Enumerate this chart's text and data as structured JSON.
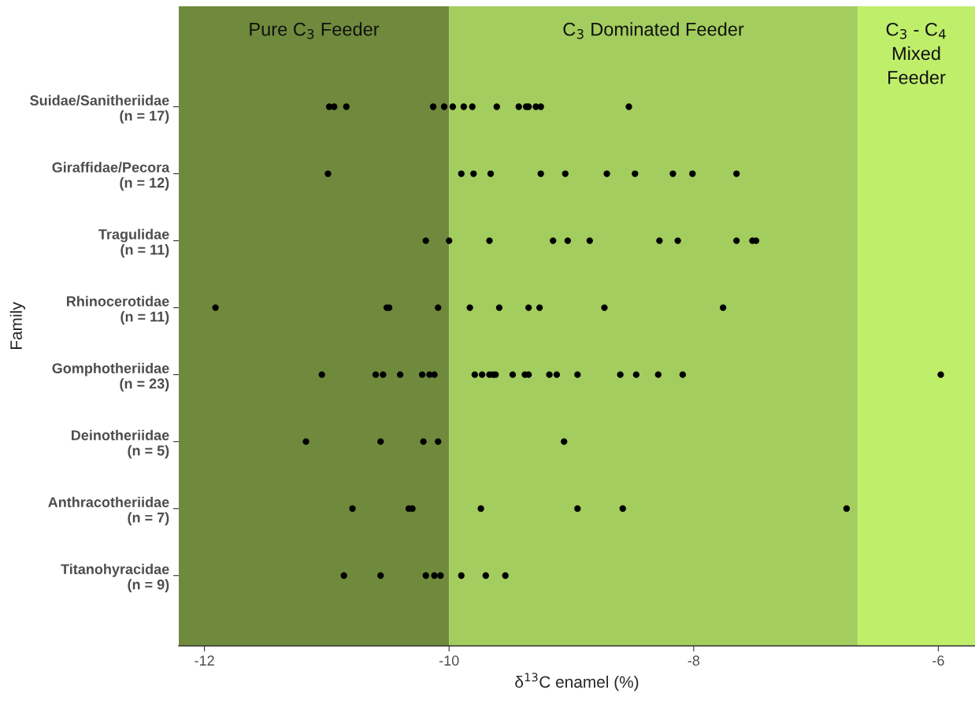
{
  "chart_data": {
    "type": "scatter",
    "orientation": "horizontal",
    "xlabel": "δ$^{13}$C enamel (%)",
    "ylabel": "Family",
    "categories": [
      "Suidae/Sanitheriidae\n(n = 17)",
      "Giraffidae/Pecora\n(n = 12)",
      "Tragulidae\n(n = 11)",
      "Rhinocerotidae\n(n = 11)",
      "Gomphotheriidae\n(n = 23)",
      "Deinotheriidae\n(n = 5)",
      "Anthracotheriidae\n(n = 7)",
      "Titanohyracidae\n(n = 9)"
    ],
    "series": [
      {
        "color": "#000000",
        "x": [
          "Suidae/Sanitheriidae\n(n = 17)",
          "Suidae/Sanitheriidae\n(n = 17)",
          "Suidae/Sanitheriidae\n(n = 17)",
          "Suidae/Sanitheriidae\n(n = 17)",
          "Suidae/Sanitheriidae\n(n = 17)",
          "Suidae/Sanitheriidae\n(n = 17)",
          "Suidae/Sanitheriidae\n(n = 17)",
          "Suidae/Sanitheriidae\n(n = 17)",
          "Suidae/Sanitheriidae\n(n = 17)",
          "Suidae/Sanitheriidae\n(n = 17)",
          "Suidae/Sanitheriidae\n(n = 17)",
          "Suidae/Sanitheriidae\n(n = 17)",
          "Suidae/Sanitheriidae\n(n = 17)",
          "Suidae/Sanitheriidae\n(n = 17)",
          "Suidae/Sanitheriidae\n(n = 17)"
        ],
        "values": [
          -10.98,
          -10.94,
          -10.84,
          -10.13,
          -10.04,
          -9.97,
          -9.88,
          -9.81,
          -9.61,
          -9.43,
          -9.37,
          -9.35,
          -9.29,
          -9.25,
          -8.53
        ]
      },
      {
        "color": "#000000",
        "x": [
          "Giraffidae/Pecora\n(n = 12)",
          "Giraffidae/Pecora\n(n = 12)",
          "Giraffidae/Pecora\n(n = 12)",
          "Giraffidae/Pecora\n(n = 12)",
          "Giraffidae/Pecora\n(n = 12)",
          "Giraffidae/Pecora\n(n = 12)",
          "Giraffidae/Pecora\n(n = 12)",
          "Giraffidae/Pecora\n(n = 12)",
          "Giraffidae/Pecora\n(n = 12)",
          "Giraffidae/Pecora\n(n = 12)",
          "Giraffidae/Pecora\n(n = 12)"
        ],
        "values": [
          -10.99,
          -9.9,
          -9.8,
          -9.66,
          -9.25,
          -9.05,
          -8.71,
          -8.48,
          -8.17,
          -8.01,
          -7.65
        ]
      },
      {
        "color": "#000000",
        "x": [
          "Tragulidae\n(n = 11)",
          "Tragulidae\n(n = 11)",
          "Tragulidae\n(n = 11)",
          "Tragulidae\n(n = 11)",
          "Tragulidae\n(n = 11)",
          "Tragulidae\n(n = 11)",
          "Tragulidae\n(n = 11)",
          "Tragulidae\n(n = 11)",
          "Tragulidae\n(n = 11)",
          "Tragulidae\n(n = 11)",
          "Tragulidae\n(n = 11)"
        ],
        "values": [
          -10.19,
          -10.0,
          -9.67,
          -9.15,
          -9.03,
          -8.85,
          -8.28,
          -8.13,
          -7.65,
          -7.52,
          -7.49
        ]
      },
      {
        "color": "#000000",
        "x": [
          "Rhinocerotidae\n(n = 11)",
          "Rhinocerotidae\n(n = 11)",
          "Rhinocerotidae\n(n = 11)",
          "Rhinocerotidae\n(n = 11)",
          "Rhinocerotidae\n(n = 11)",
          "Rhinocerotidae\n(n = 11)",
          "Rhinocerotidae\n(n = 11)",
          "Rhinocerotidae\n(n = 11)",
          "Rhinocerotidae\n(n = 11)",
          "Rhinocerotidae\n(n = 11)"
        ],
        "values": [
          -11.91,
          -10.51,
          -10.49,
          -10.09,
          -9.83,
          -9.59,
          -9.35,
          -9.26,
          -8.73,
          -7.76
        ]
      },
      {
        "color": "#000000",
        "x": [
          "Gomphotheriidae\n(n = 23)",
          "Gomphotheriidae\n(n = 23)",
          "Gomphotheriidae\n(n = 23)",
          "Gomphotheriidae\n(n = 23)",
          "Gomphotheriidae\n(n = 23)",
          "Gomphotheriidae\n(n = 23)",
          "Gomphotheriidae\n(n = 23)",
          "Gomphotheriidae\n(n = 23)",
          "Gomphotheriidae\n(n = 23)",
          "Gomphotheriidae\n(n = 23)",
          "Gomphotheriidae\n(n = 23)",
          "Gomphotheriidae\n(n = 23)",
          "Gomphotheriidae\n(n = 23)",
          "Gomphotheriidae\n(n = 23)",
          "Gomphotheriidae\n(n = 23)",
          "Gomphotheriidae\n(n = 23)",
          "Gomphotheriidae\n(n = 23)",
          "Gomphotheriidae\n(n = 23)",
          "Gomphotheriidae\n(n = 23)",
          "Gomphotheriidae\n(n = 23)",
          "Gomphotheriidae\n(n = 23)",
          "Gomphotheriidae\n(n = 23)",
          "Gomphotheriidae\n(n = 23)"
        ],
        "values": [
          -11.04,
          -10.6,
          -10.54,
          -10.4,
          -10.22,
          -10.16,
          -10.12,
          -9.79,
          -9.73,
          -9.67,
          -9.64,
          -9.62,
          -9.48,
          -9.38,
          -9.35,
          -9.18,
          -9.12,
          -8.95,
          -8.6,
          -8.47,
          -8.29,
          -8.09,
          -5.98
        ]
      },
      {
        "color": "#000000",
        "x": [
          "Deinotheriidae\n(n = 5)",
          "Deinotheriidae\n(n = 5)",
          "Deinotheriidae\n(n = 5)",
          "Deinotheriidae\n(n = 5)",
          "Deinotheriidae\n(n = 5)"
        ],
        "values": [
          -11.17,
          -10.56,
          -10.21,
          -10.09,
          -9.06
        ]
      },
      {
        "color": "#000000",
        "x": [
          "Anthracotheriidae\n(n = 7)",
          "Anthracotheriidae\n(n = 7)",
          "Anthracotheriidae\n(n = 7)",
          "Anthracotheriidae\n(n = 7)",
          "Anthracotheriidae\n(n = 7)",
          "Anthracotheriidae\n(n = 7)",
          "Anthracotheriidae\n(n = 7)"
        ],
        "values": [
          -10.79,
          -10.33,
          -10.3,
          -9.74,
          -8.95,
          -8.58,
          -6.75
        ]
      },
      {
        "color": "#000000",
        "x": [
          "Titanohyracidae\n(n = 9)",
          "Titanohyracidae\n(n = 9)",
          "Titanohyracidae\n(n = 9)",
          "Titanohyracidae\n(n = 9)",
          "Titanohyracidae\n(n = 9)",
          "Titanohyracidae\n(n = 9)",
          "Titanohyracidae\n(n = 9)",
          "Titanohyracidae\n(n = 9)"
        ],
        "values": [
          -10.86,
          -10.56,
          -10.19,
          -10.12,
          -10.07,
          -9.9,
          -9.7,
          -9.54
        ]
      }
    ],
    "xlim": [
      -12.21,
      -5.7
    ],
    "xticks": [
      -12,
      -10,
      -8,
      -6
    ],
    "grid": false,
    "legend": false,
    "marker": "circle",
    "bands": [
      {
        "axis": "x",
        "from": -12.21,
        "to": -10,
        "label": "Pure C$_{3}$ Feeder",
        "color": "#6f8a3c"
      },
      {
        "axis": "x",
        "from": -10,
        "to": -6.66,
        "label": "C$_{3}$ Dominated Feeder",
        "color": "#a3cd5e"
      },
      {
        "axis": "x",
        "from": -6.66,
        "to": -5.7,
        "label": "C$_{3}$ - C$_{4}$\nMixed\nFeeder",
        "color": "#bfee6b"
      }
    ]
  }
}
